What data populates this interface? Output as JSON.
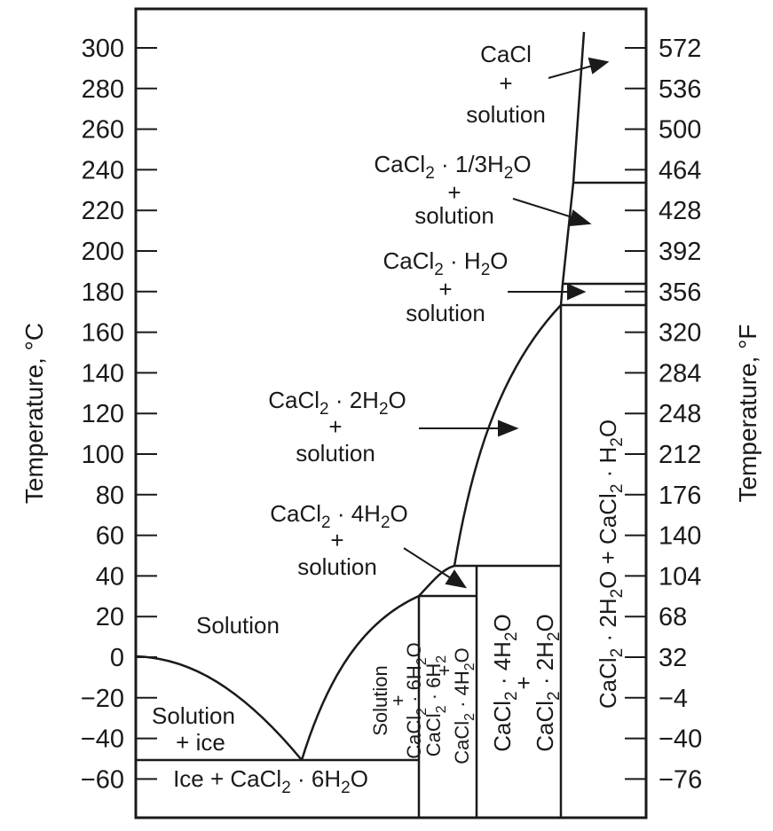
{
  "axes": {
    "left_title": "Temperature, °C",
    "right_title": "Temperature, °F",
    "left_ticks": [
      "300",
      "280",
      "260",
      "240",
      "220",
      "200",
      "180",
      "160",
      "140",
      "120",
      "100",
      "80",
      "60",
      "40",
      "20",
      "0",
      "−20",
      "−40",
      "−60"
    ],
    "right_ticks": [
      "572",
      "536",
      "500",
      "464",
      "428",
      "392",
      "356",
      "320",
      "284",
      "248",
      "212",
      "176",
      "140",
      "104",
      "68",
      "32",
      "−4",
      "−40",
      "−76"
    ]
  },
  "regions": {
    "cacl_solution": [
      "CaCl",
      "+",
      "solution"
    ],
    "one_third": {
      "formula": "CaCl",
      "sub2": "2",
      "rest": " · 1/3H",
      "sub3": "2",
      "tail": "O",
      "plus": "+",
      "solution": "solution"
    },
    "mono": {
      "formula": "CaCl",
      "sub2": "2",
      "rest": " · H",
      "sub3": "2",
      "tail": "O",
      "plus": "+",
      "solution": "solution"
    },
    "di": {
      "formula": "CaCl",
      "sub2": "2",
      "rest": " · 2H",
      "sub3": "2",
      "tail": "O",
      "plus": "+",
      "solution": "solution"
    },
    "tetra": {
      "formula": "CaCl",
      "sub2": "2",
      "rest": " · 4H",
      "sub3": "2",
      "tail": "O",
      "plus": "+",
      "solution": "solution"
    },
    "solution": "Solution",
    "solution_ice": [
      "Solution",
      "+ ice"
    ],
    "ice_hexa": {
      "pre": "Ice + CaCl",
      "sub2": "2",
      "rest": " · 6H",
      "sub3": "2",
      "tail": "O"
    },
    "sol_hexa": {
      "line1": "Solution",
      "line2": "+",
      "pre": "CaCl",
      "sub2": "2",
      "rest": " · 6H",
      "sub3": "2",
      "tail": "O"
    },
    "hexa_tetra": {
      "pre1": "CaCl",
      "sub1": "2",
      "rest1": " · 6H",
      "sub1b": "2",
      "plus": "+",
      "pre2": "CaCl",
      "sub2": "2",
      "rest2": " · 4H",
      "sub2b": "2",
      "tail2": "O"
    },
    "tetra_di": {
      "pre1": "CaCl",
      "sub1": "2",
      "rest1": " · 4H",
      "sub1b": "2",
      "tail1": "O",
      "plus": "+",
      "pre2": "CaCl",
      "sub2": "2",
      "rest2": " · 2H",
      "sub2b": "2",
      "tail2": "O"
    },
    "di_mono": {
      "pre1": "CaCl",
      "sub1": "2",
      "rest1": " · 2H",
      "sub1b": "2",
      "mid": "O + CaCl",
      "sub2": "2",
      "rest2": " · H",
      "sub2b": "2",
      "tail2": "O"
    }
  }
}
